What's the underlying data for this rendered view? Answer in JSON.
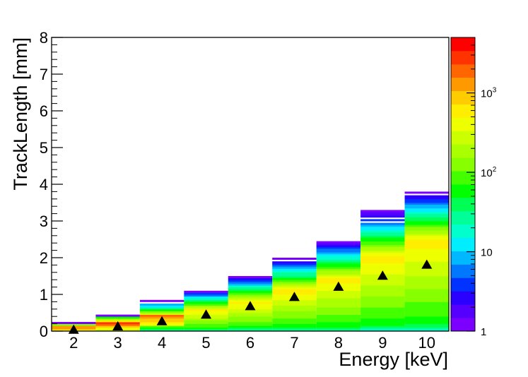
{
  "chart_data": {
    "type": "heatmap",
    "xlabel": "Energy [keV]",
    "ylabel": "TrackLength [mm]",
    "x_categories": [
      "2",
      "3",
      "4",
      "5",
      "6",
      "7",
      "8",
      "9",
      "10"
    ],
    "x_range": [
      1.5,
      10.5
    ],
    "ylim": [
      0,
      8
    ],
    "y_ticks": [
      "0",
      "1",
      "2",
      "3",
      "4",
      "5",
      "6",
      "7",
      "8"
    ],
    "colorbar": {
      "scale": "log",
      "range": [
        1,
        5000
      ],
      "tick_labels": [
        {
          "value": 1,
          "label": "1"
        },
        {
          "value": 10,
          "label": "10"
        },
        {
          "value": 100,
          "label": "10^2"
        },
        {
          "value": 1000,
          "label": "10^3"
        }
      ],
      "palette": [
        "#7c00ff",
        "#5500ff",
        "#2a00ff",
        "#0033ff",
        "#0077ff",
        "#00b8ff",
        "#00eeff",
        "#00ffcc",
        "#00ff99",
        "#00ff55",
        "#00ff00",
        "#44ff00",
        "#88ff00",
        "#aaff00",
        "#ccff00",
        "#eeff00",
        "#ffee00",
        "#ffcc00",
        "#ff9900",
        "#ff6600",
        "#ff3300",
        "#ff0000"
      ]
    },
    "grid": false,
    "columns": [
      {
        "energy": 2,
        "max_length": 0.24,
        "mean": 0.03,
        "gaps": []
      },
      {
        "energy": 3,
        "max_length": 0.46,
        "mean": 0.12,
        "gaps": [
          [
            0.38,
            0.42
          ]
        ]
      },
      {
        "energy": 4,
        "max_length": 0.85,
        "mean": 0.26,
        "gaps": [
          [
            0.74,
            0.8
          ]
        ]
      },
      {
        "energy": 5,
        "max_length": 1.12,
        "mean": 0.44,
        "gaps": []
      },
      {
        "energy": 6,
        "max_length": 1.52,
        "mean": 0.67,
        "gaps": []
      },
      {
        "energy": 7,
        "max_length": 2.0,
        "mean": 0.92,
        "gaps": [
          [
            1.9,
            1.95
          ]
        ]
      },
      {
        "energy": 8,
        "max_length": 2.46,
        "mean": 1.2,
        "gaps": []
      },
      {
        "energy": 9,
        "max_length": 3.28,
        "mean": 1.5,
        "gaps": [
          [
            3.18,
            3.22
          ],
          [
            3.07,
            3.12
          ],
          [
            2.97,
            3.02
          ]
        ]
      },
      {
        "energy": 10,
        "max_length": 3.82,
        "mean": 1.8,
        "gaps": [
          [
            3.72,
            3.76
          ]
        ]
      }
    ],
    "marker_series": {
      "marker": "triangle",
      "color": "#000000"
    }
  }
}
